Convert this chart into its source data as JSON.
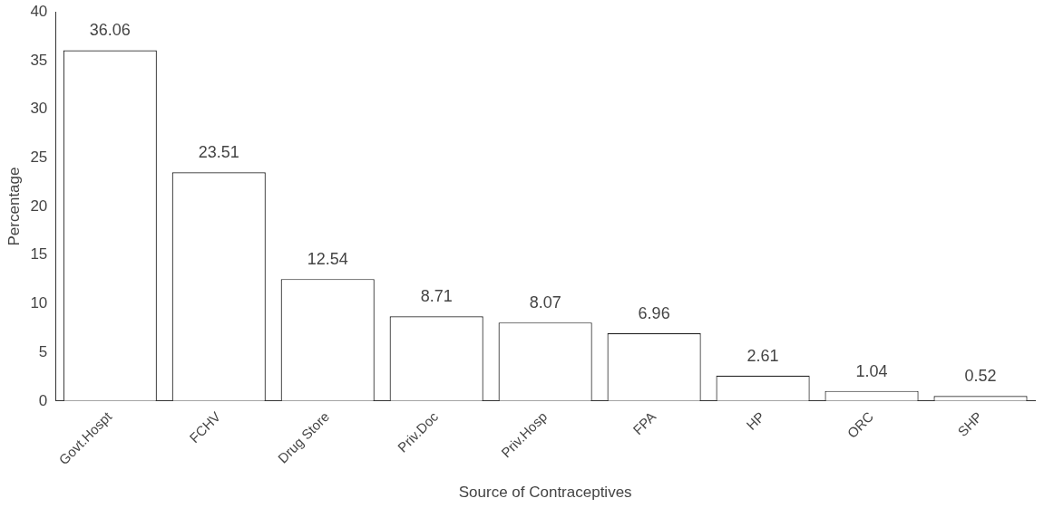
{
  "chart_data": {
    "type": "bar",
    "xlabel": "Source of Contraceptives",
    "ylabel": "Percentage",
    "categories": [
      "Govt.Hospt",
      "FCHV",
      "Drug Store",
      "Priv.Doc",
      "Priv.Hosp",
      "FPA",
      "HP",
      "ORC",
      "SHP"
    ],
    "values": [
      36.06,
      23.51,
      12.54,
      8.71,
      8.07,
      6.96,
      2.61,
      1.04,
      0.52
    ],
    "color": "#ffffff",
    "ylim": [
      0,
      40
    ],
    "yticks": [
      0,
      5,
      10,
      15,
      20,
      25,
      30,
      35,
      40
    ],
    "grid": false,
    "data_labels": true
  }
}
